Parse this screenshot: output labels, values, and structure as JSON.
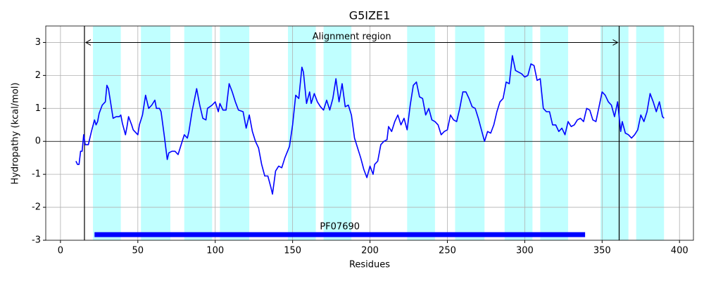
{
  "chart_data": {
    "type": "line",
    "title": "G5IZE1",
    "x_label": "Residues",
    "y_label": "Hydropathy (kcal/mol)",
    "xlim": [
      -9.5,
      409
    ],
    "ylim": [
      -3,
      3.5
    ],
    "xticks": [
      0,
      50,
      100,
      150,
      200,
      250,
      300,
      350,
      400
    ],
    "yticks": [
      -3,
      -2,
      -1,
      0,
      1,
      2,
      3
    ],
    "grid": true,
    "color": "#0000ff",
    "region_color": "#c0ffff",
    "regions": [
      [
        21,
        39
      ],
      [
        52,
        71
      ],
      [
        80,
        98
      ],
      [
        103,
        122
      ],
      [
        147,
        165
      ],
      [
        170,
        188
      ],
      [
        224,
        242
      ],
      [
        255,
        274
      ],
      [
        287,
        305
      ],
      [
        310,
        328
      ],
      [
        349,
        367
      ],
      [
        372,
        390
      ]
    ],
    "alignment_region": {
      "label": "Alignment region",
      "start": 15.5,
      "end": 361,
      "y": 3
    },
    "domain": {
      "label": "PF07690",
      "start": 22,
      "end": 339,
      "y": -2.83,
      "color": "#0000ff"
    },
    "x": [
      10,
      11,
      12,
      13,
      14,
      15,
      16,
      18,
      20,
      22,
      23,
      24,
      25,
      27,
      29,
      30,
      31,
      33,
      34,
      36,
      38,
      39,
      40,
      42,
      43,
      44,
      46,
      47,
      48,
      50,
      51,
      53,
      55,
      57,
      59,
      61,
      62,
      64,
      65,
      67,
      69,
      70,
      72,
      74,
      76,
      78,
      80,
      82,
      83,
      85,
      88,
      90,
      92,
      94,
      95,
      98,
      100,
      102,
      103,
      105,
      107,
      109,
      111,
      113,
      115,
      118,
      120,
      122,
      124,
      126,
      128,
      130,
      132,
      134,
      136,
      137,
      139,
      141,
      143,
      145,
      148,
      150,
      152,
      154,
      156,
      157,
      159,
      161,
      162,
      164,
      166,
      168,
      170,
      172,
      174,
      176,
      178,
      180,
      182,
      184,
      186,
      188,
      190,
      192,
      194,
      196,
      198,
      200,
      202,
      203,
      205,
      207,
      209,
      211,
      212,
      214,
      216,
      218,
      220,
      222,
      224,
      226,
      228,
      230,
      232,
      234,
      236,
      238,
      240,
      242,
      244,
      246,
      248,
      250,
      252,
      254,
      256,
      258,
      260,
      262,
      264,
      266,
      268,
      270,
      272,
      274,
      276,
      278,
      280,
      282,
      284,
      286,
      288,
      290,
      292,
      294,
      296,
      298,
      300,
      302,
      304,
      306,
      308,
      310,
      312,
      314,
      316,
      318,
      320,
      322,
      324,
      326,
      328,
      330,
      332,
      334,
      336,
      338,
      340,
      342,
      344,
      346,
      348,
      350,
      352,
      354,
      356,
      358,
      360,
      362,
      363,
      365,
      367,
      369,
      371,
      373,
      375,
      377,
      379,
      381,
      383,
      385,
      387,
      389,
      390
    ],
    "values": [
      -0.6,
      -0.7,
      -0.7,
      -0.3,
      -0.3,
      0.2,
      -0.1,
      -0.1,
      0.3,
      0.65,
      0.5,
      0.6,
      0.85,
      1.1,
      1.2,
      1.7,
      1.6,
      1.0,
      0.7,
      0.75,
      0.75,
      0.8,
      0.55,
      0.2,
      0.45,
      0.75,
      0.5,
      0.35,
      0.3,
      0.2,
      0.5,
      0.8,
      1.4,
      1.0,
      1.1,
      1.25,
      1.0,
      1.0,
      0.9,
      0.2,
      -0.55,
      -0.35,
      -0.3,
      -0.3,
      -0.4,
      -0.1,
      0.2,
      0.1,
      0.3,
      0.9,
      1.6,
      1.1,
      0.7,
      0.65,
      1.0,
      1.1,
      1.2,
      0.9,
      1.15,
      0.95,
      0.95,
      1.75,
      1.5,
      1.2,
      0.95,
      0.9,
      0.4,
      0.8,
      0.3,
      0.0,
      -0.2,
      -0.7,
      -1.05,
      -1.05,
      -1.4,
      -1.6,
      -0.9,
      -0.75,
      -0.8,
      -0.5,
      -0.15,
      0.5,
      1.4,
      1.3,
      2.25,
      2.1,
      1.15,
      1.5,
      1.15,
      1.45,
      1.2,
      1.05,
      0.95,
      1.25,
      0.95,
      1.3,
      1.9,
      1.2,
      1.75,
      1.05,
      1.1,
      0.8,
      0.1,
      -0.2,
      -0.5,
      -0.85,
      -1.1,
      -0.75,
      -1.0,
      -0.7,
      -0.6,
      -0.1,
      0.0,
      0.05,
      0.45,
      0.3,
      0.6,
      0.8,
      0.5,
      0.7,
      0.35,
      1.1,
      1.7,
      1.8,
      1.35,
      1.3,
      0.8,
      1.0,
      0.65,
      0.6,
      0.5,
      0.2,
      0.3,
      0.35,
      0.8,
      0.65,
      0.6,
      1.0,
      1.5,
      1.5,
      1.3,
      1.05,
      1.0,
      0.7,
      0.35,
      0.0,
      0.3,
      0.25,
      0.5,
      0.9,
      1.2,
      1.3,
      1.8,
      1.75,
      2.6,
      2.15,
      2.1,
      2.05,
      1.95,
      2.0,
      2.35,
      2.3,
      1.85,
      1.9,
      1.0,
      0.9,
      0.9,
      0.5,
      0.5,
      0.3,
      0.4,
      0.2,
      0.6,
      0.45,
      0.5,
      0.65,
      0.7,
      0.6,
      1.0,
      0.95,
      0.65,
      0.6,
      1.05,
      1.5,
      1.4,
      1.2,
      1.1,
      0.75,
      1.2,
      0.3,
      0.6,
      0.25,
      0.2,
      0.1,
      0.2,
      0.35,
      0.8,
      0.6,
      0.9,
      1.45,
      1.2,
      0.9,
      1.2,
      0.75,
      0.7
    ]
  }
}
